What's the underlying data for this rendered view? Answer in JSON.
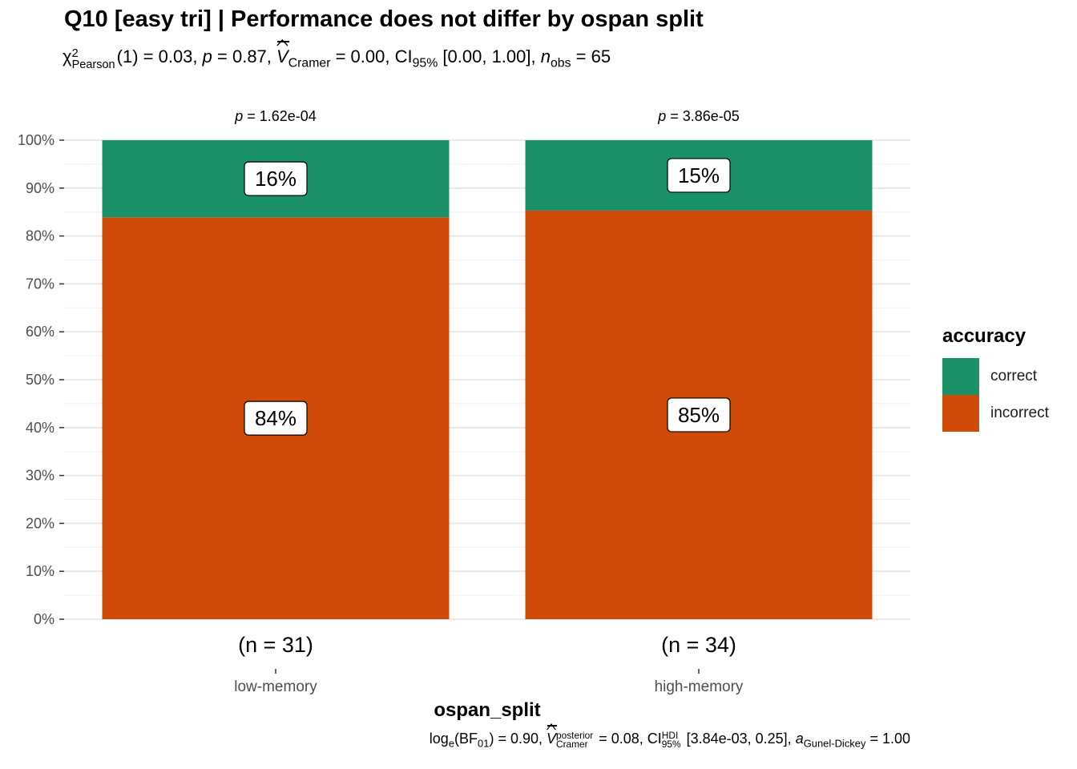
{
  "title": "Q10 [easy tri] | Performance does not differ by ospan split",
  "subtitle": {
    "chi_symbol": "χ",
    "chi_sup": "2",
    "chi_sub": "Pearson",
    "df_stat": "(1) = 0.03, ",
    "p_symbol": "p",
    "p_value": " = 0.87, ",
    "v_symbol": "V",
    "v_sub": "Cramer",
    "v_value": " = 0.00, CI",
    "ci_sub": "95%",
    "ci_value": " [0.00, 1.00], ",
    "n_symbol": "n",
    "n_sub": "obs",
    "n_value": " = 65"
  },
  "caption": {
    "log_text": "log",
    "log_sub": "e",
    "bf_open": "(BF",
    "bf_sub": "01",
    "bf_value": ") = 0.90, ",
    "v_symbol": "V",
    "v_sup": "posterior",
    "v_sub": "Cramer",
    "v_value": " = 0.08, CI",
    "ci_sup": "HDI",
    "ci_sub": "95%",
    "ci_value": " [3.84e-03, 0.25], ",
    "a_symbol": "a",
    "a_sub": "Gunel-Dickey",
    "a_value": " = 1.00"
  },
  "legend": {
    "title": "accuracy",
    "items": [
      {
        "label": "correct",
        "color": "#1B9168"
      },
      {
        "label": "incorrect",
        "color": "#CF4B07"
      }
    ]
  },
  "chart_data": {
    "type": "bar",
    "stacked": true,
    "xlabel": "ospan_split",
    "ylabel": "",
    "ylim": [
      0,
      100
    ],
    "y_ticks": [
      "0%",
      "10%",
      "20%",
      "30%",
      "40%",
      "50%",
      "60%",
      "70%",
      "80%",
      "90%",
      "100%"
    ],
    "categories": [
      "low-memory",
      "high-memory"
    ],
    "counts": [
      "(n = 31)",
      "(n = 34)"
    ],
    "p_labels": [
      "1.62e-04",
      "3.86e-05"
    ],
    "p_prefix": "p",
    "series": [
      {
        "name": "incorrect",
        "color": "#CF4B07",
        "values": [
          83.9,
          85.3
        ],
        "labels": [
          "84%",
          "85%"
        ]
      },
      {
        "name": "correct",
        "color": "#1B9168",
        "values": [
          16.1,
          14.7
        ],
        "labels": [
          "16%",
          "15%"
        ]
      }
    ],
    "grid": true,
    "legend_position": "right"
  }
}
